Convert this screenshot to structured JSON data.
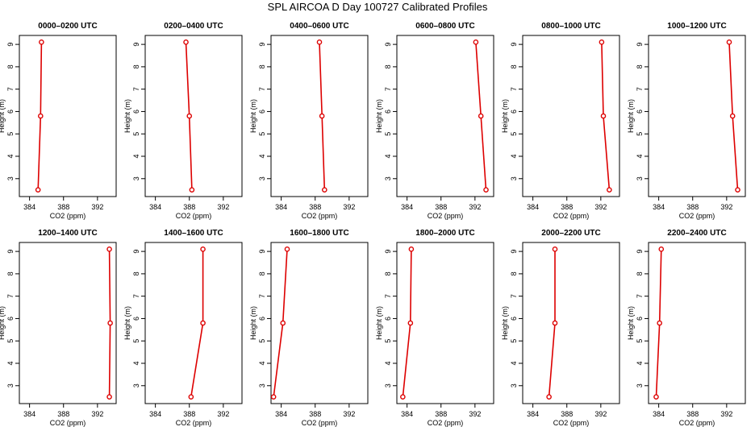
{
  "title": "SPL AIRCOA D  Day 100727  Calibrated Profiles",
  "colors": {
    "series": "#dd0000",
    "axis": "#000000",
    "background": "#ffffff"
  },
  "chart_data": [
    {
      "type": "line",
      "title": "0000–0200 UTC",
      "xlabel": "CO2 (ppm)",
      "ylabel": "Height (m)",
      "xlim": [
        382.8,
        394.2
      ],
      "ylim": [
        2.2,
        9.4
      ],
      "xticks": [
        384,
        388,
        392
      ],
      "yticks": [
        3,
        4,
        5,
        6,
        7,
        8,
        9
      ],
      "x": [
        385.0,
        385.3,
        385.4
      ],
      "y": [
        2.5,
        5.8,
        9.1
      ]
    },
    {
      "type": "line",
      "title": "0200–0400 UTC",
      "xlabel": "CO2 (ppm)",
      "ylabel": "Height (m)",
      "xlim": [
        382.8,
        394.2
      ],
      "ylim": [
        2.2,
        9.4
      ],
      "xticks": [
        384,
        388,
        392
      ],
      "yticks": [
        3,
        4,
        5,
        6,
        7,
        8,
        9
      ],
      "x": [
        388.3,
        388.0,
        387.6
      ],
      "y": [
        2.5,
        5.8,
        9.1
      ]
    },
    {
      "type": "line",
      "title": "0400–0600 UTC",
      "xlabel": "CO2 (ppm)",
      "ylabel": "Height (m)",
      "xlim": [
        382.8,
        394.2
      ],
      "ylim": [
        2.2,
        9.4
      ],
      "xticks": [
        384,
        388,
        392
      ],
      "yticks": [
        3,
        4,
        5,
        6,
        7,
        8,
        9
      ],
      "x": [
        389.1,
        388.8,
        388.5
      ],
      "y": [
        2.5,
        5.8,
        9.1
      ]
    },
    {
      "type": "line",
      "title": "0600–0800 UTC",
      "xlabel": "CO2 (ppm)",
      "ylabel": "Height (m)",
      "xlim": [
        382.8,
        394.2
      ],
      "ylim": [
        2.2,
        9.4
      ],
      "xticks": [
        384,
        388,
        392
      ],
      "yticks": [
        3,
        4,
        5,
        6,
        7,
        8,
        9
      ],
      "x": [
        393.3,
        392.7,
        392.1
      ],
      "y": [
        2.5,
        5.8,
        9.1
      ]
    },
    {
      "type": "line",
      "title": "0800–1000 UTC",
      "xlabel": "CO2 (ppm)",
      "ylabel": "Height (m)",
      "xlim": [
        382.8,
        394.2
      ],
      "ylim": [
        2.2,
        9.4
      ],
      "xticks": [
        384,
        388,
        392
      ],
      "yticks": [
        3,
        4,
        5,
        6,
        7,
        8,
        9
      ],
      "x": [
        393.0,
        392.3,
        392.1
      ],
      "y": [
        2.5,
        5.8,
        9.1
      ]
    },
    {
      "type": "line",
      "title": "1000–1200 UTC",
      "xlabel": "CO2 (ppm)",
      "ylabel": "Height (m)",
      "xlim": [
        382.8,
        394.2
      ],
      "ylim": [
        2.2,
        9.4
      ],
      "xticks": [
        384,
        388,
        392
      ],
      "yticks": [
        3,
        4,
        5,
        6,
        7,
        8,
        9
      ],
      "x": [
        393.3,
        392.7,
        392.3
      ],
      "y": [
        2.5,
        5.8,
        9.1
      ]
    },
    {
      "type": "line",
      "title": "1200–1400 UTC",
      "xlabel": "CO2 (ppm)",
      "ylabel": "Height (m)",
      "xlim": [
        382.8,
        394.2
      ],
      "ylim": [
        2.2,
        9.4
      ],
      "xticks": [
        384,
        388,
        392
      ],
      "yticks": [
        3,
        4,
        5,
        6,
        7,
        8,
        9
      ],
      "x": [
        393.4,
        393.5,
        393.4
      ],
      "y": [
        2.5,
        5.8,
        9.1
      ]
    },
    {
      "type": "line",
      "title": "1400–1600 UTC",
      "xlabel": "CO2 (ppm)",
      "ylabel": "Height (m)",
      "xlim": [
        382.8,
        394.2
      ],
      "ylim": [
        2.2,
        9.4
      ],
      "xticks": [
        384,
        388,
        392
      ],
      "yticks": [
        3,
        4,
        5,
        6,
        7,
        8,
        9
      ],
      "x": [
        388.2,
        389.6,
        389.6
      ],
      "y": [
        2.5,
        5.8,
        9.1
      ]
    },
    {
      "type": "line",
      "title": "1600–1800 UTC",
      "xlabel": "CO2 (ppm)",
      "ylabel": "Height (m)",
      "xlim": [
        382.8,
        394.2
      ],
      "ylim": [
        2.2,
        9.4
      ],
      "xticks": [
        384,
        388,
        392
      ],
      "yticks": [
        3,
        4,
        5,
        6,
        7,
        8,
        9
      ],
      "x": [
        383.1,
        384.2,
        384.7
      ],
      "y": [
        2.5,
        5.8,
        9.1
      ]
    },
    {
      "type": "line",
      "title": "1800–2000 UTC",
      "xlabel": "CO2 (ppm)",
      "ylabel": "Height (m)",
      "xlim": [
        382.8,
        394.2
      ],
      "ylim": [
        2.2,
        9.4
      ],
      "xticks": [
        384,
        388,
        392
      ],
      "yticks": [
        3,
        4,
        5,
        6,
        7,
        8,
        9
      ],
      "x": [
        383.5,
        384.4,
        384.5
      ],
      "y": [
        2.5,
        5.8,
        9.1
      ]
    },
    {
      "type": "line",
      "title": "2000–2200 UTC",
      "xlabel": "CO2 (ppm)",
      "ylabel": "Height (m)",
      "xlim": [
        382.8,
        394.2
      ],
      "ylim": [
        2.2,
        9.4
      ],
      "xticks": [
        384,
        388,
        392
      ],
      "yticks": [
        3,
        4,
        5,
        6,
        7,
        8,
        9
      ],
      "x": [
        385.9,
        386.6,
        386.6
      ],
      "y": [
        2.5,
        5.8,
        9.1
      ]
    },
    {
      "type": "line",
      "title": "2200–2400 UTC",
      "xlabel": "CO2 (ppm)",
      "ylabel": "Height (m)",
      "xlim": [
        382.8,
        394.2
      ],
      "ylim": [
        2.2,
        9.4
      ],
      "xticks": [
        384,
        388,
        392
      ],
      "yticks": [
        3,
        4,
        5,
        6,
        7,
        8,
        9
      ],
      "x": [
        383.7,
        384.1,
        384.3
      ],
      "y": [
        2.5,
        5.8,
        9.1
      ]
    }
  ]
}
